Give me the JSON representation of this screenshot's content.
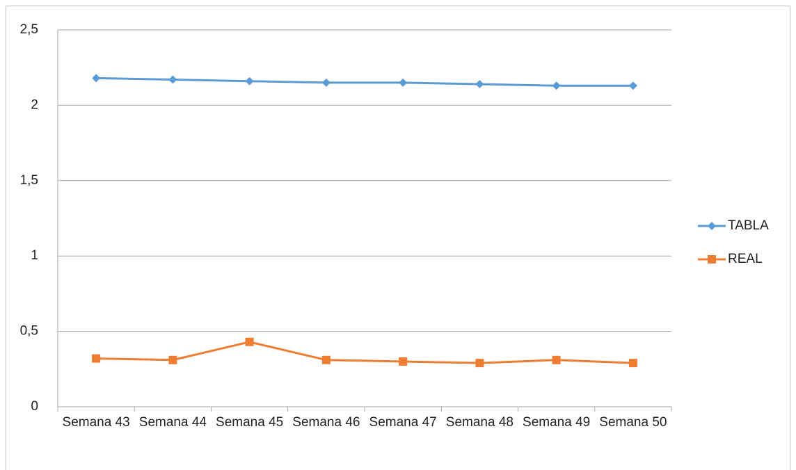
{
  "chart_data": {
    "type": "line",
    "categories": [
      "Semana 43",
      "Semana 44",
      "Semana 45",
      "Semana 46",
      "Semana 47",
      "Semana 48",
      "Semana 49",
      "Semana 50"
    ],
    "series": [
      {
        "name": "TABLA",
        "color": "#5b9bd5",
        "marker": "diamond",
        "values": [
          2.18,
          2.17,
          2.16,
          2.15,
          2.15,
          2.14,
          2.13,
          2.13
        ]
      },
      {
        "name": "REAL",
        "color": "#ed7d31",
        "marker": "square",
        "values": [
          0.32,
          0.31,
          0.43,
          0.31,
          0.3,
          0.29,
          0.31,
          0.29
        ]
      }
    ],
    "ylim": [
      0,
      2.5
    ],
    "yticks": [
      0,
      {
        "value": 0.5,
        "label": "0,5"
      },
      1,
      {
        "value": 1.5,
        "label": "1,5"
      },
      2,
      {
        "value": 2.5,
        "label": "2,5"
      }
    ],
    "grid": true,
    "legend": "right"
  }
}
